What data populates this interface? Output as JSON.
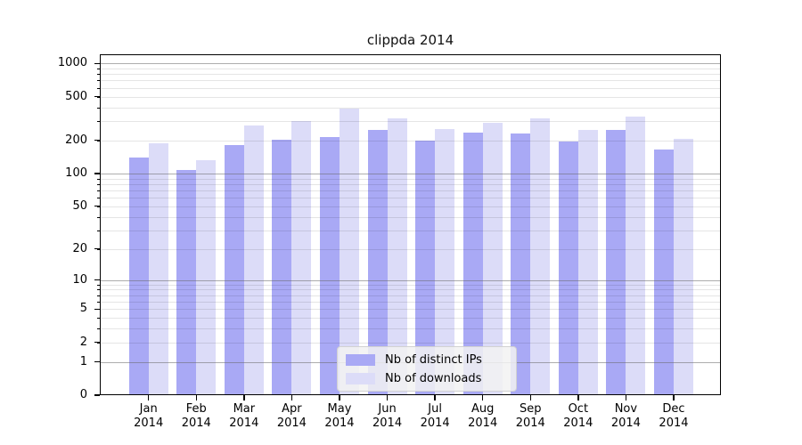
{
  "title": "clippda 2014",
  "colors": {
    "ips_bar": "#a9a9f5",
    "downloads_bar": "#dcdcf8",
    "major_grid": "#9c9c9c",
    "minor_grid": "#e4e4e4",
    "axis": "#000000",
    "legend_bg": "#f2f2f2"
  },
  "legend": {
    "items": [
      {
        "label": "Nb of distinct IPs",
        "color": "#a9a9f5"
      },
      {
        "label": "Nb of downloads",
        "color": "#dcdcf8"
      }
    ]
  },
  "chart_data": {
    "type": "bar",
    "title": "clippda 2014",
    "categories": [
      "Jan 2014",
      "Feb 2014",
      "Mar 2014",
      "Apr 2014",
      "May 2014",
      "Jun 2014",
      "Jul 2014",
      "Aug 2014",
      "Sep 2014",
      "Oct 2014",
      "Nov 2014",
      "Dec 2014"
    ],
    "series": [
      {
        "name": "Nb of distinct IPs",
        "color": "#a9a9f5",
        "values": [
          140,
          107,
          182,
          205,
          215,
          250,
          200,
          234,
          230,
          194,
          248,
          166
        ]
      },
      {
        "name": "Nb of downloads",
        "color": "#dcdcf8",
        "values": [
          190,
          133,
          272,
          300,
          392,
          320,
          252,
          290,
          315,
          250,
          330,
          208
        ]
      }
    ],
    "xlabel": "",
    "ylabel": "",
    "yscale": "log(value+1)",
    "ylim": [
      0,
      1000
    ],
    "y_ticks": [
      0,
      1,
      2,
      5,
      10,
      20,
      50,
      100,
      200,
      500,
      1000
    ],
    "major_grid_values": [
      1,
      10,
      100,
      1000
    ],
    "minor_grid_values": [
      2,
      3,
      4,
      5,
      6,
      7,
      8,
      9,
      20,
      30,
      40,
      50,
      60,
      70,
      80,
      90,
      200,
      300,
      400,
      500,
      600,
      700,
      800,
      900
    ],
    "grid": "on",
    "legend_position": "lower center"
  }
}
